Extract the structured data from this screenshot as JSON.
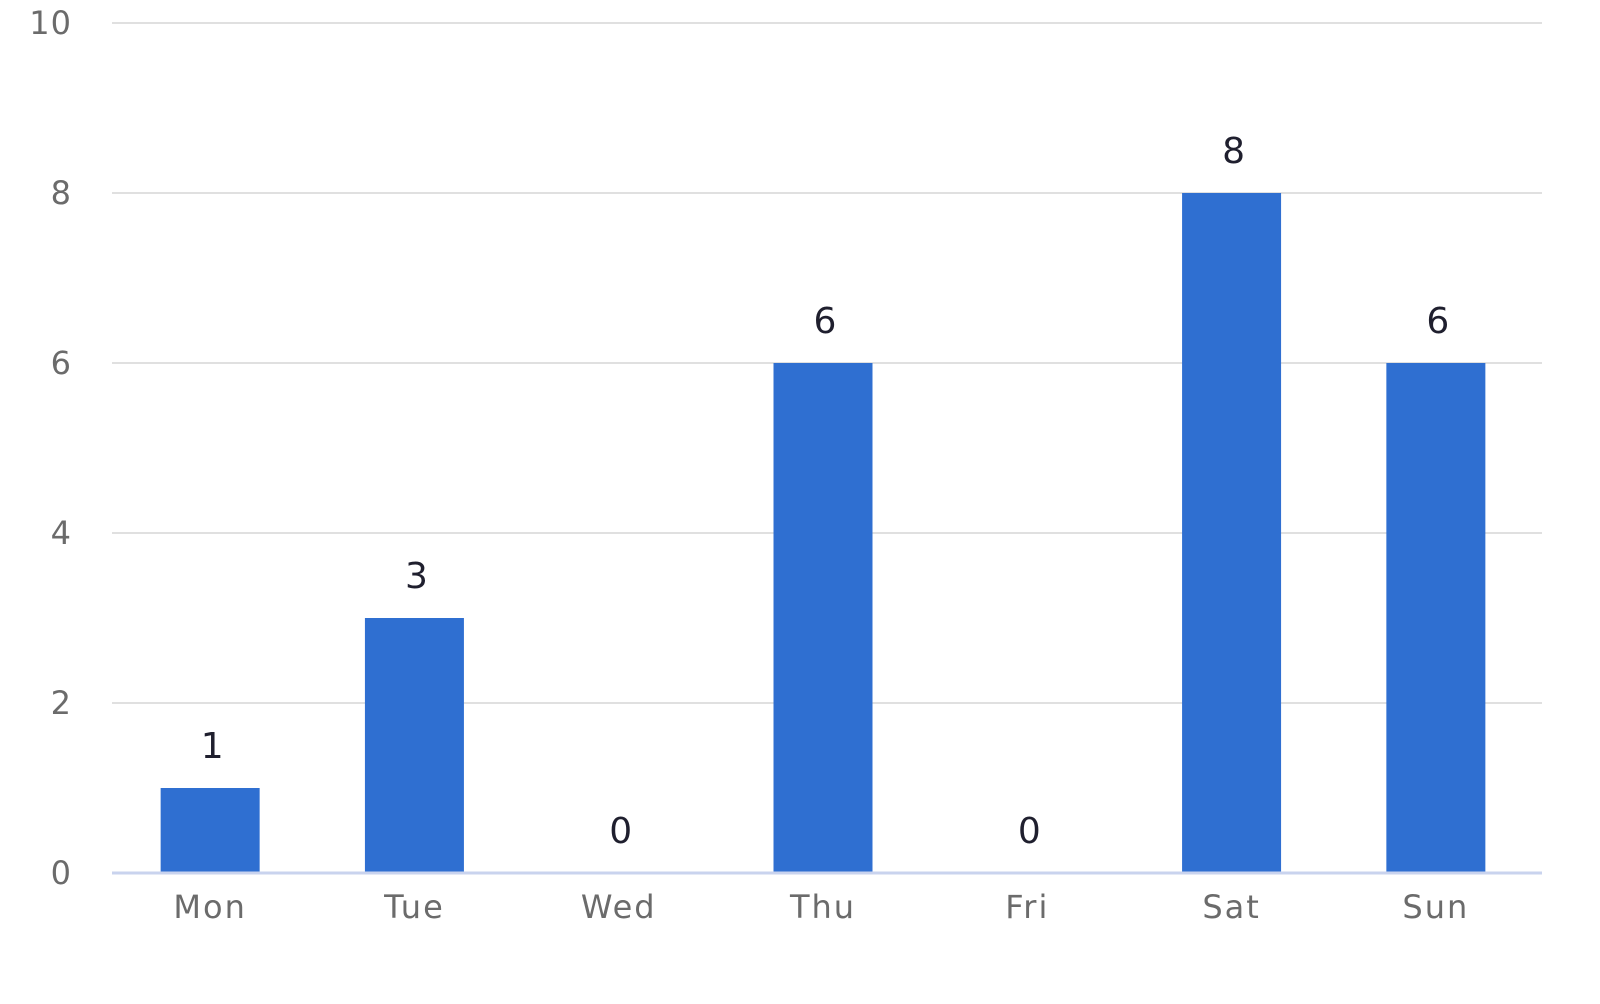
{
  "chart_data": {
    "type": "bar",
    "categories": [
      "Mon",
      "Tue",
      "Wed",
      "Thu",
      "Fri",
      "Sat",
      "Sun"
    ],
    "values": [
      1,
      3,
      0,
      6,
      0,
      8,
      6
    ],
    "title": "",
    "xlabel": "",
    "ylabel": "",
    "ylim": [
      0,
      10
    ],
    "y_ticks": [
      0,
      2,
      4,
      6,
      8,
      10
    ],
    "grid": true,
    "legend": "none",
    "colors": {
      "bar": "#2F6FD1",
      "grid": "#E0E0E0",
      "axis": "#C9D3EE",
      "tick_text": "#6B6B6B",
      "data_label": "#1F1F2E"
    }
  }
}
